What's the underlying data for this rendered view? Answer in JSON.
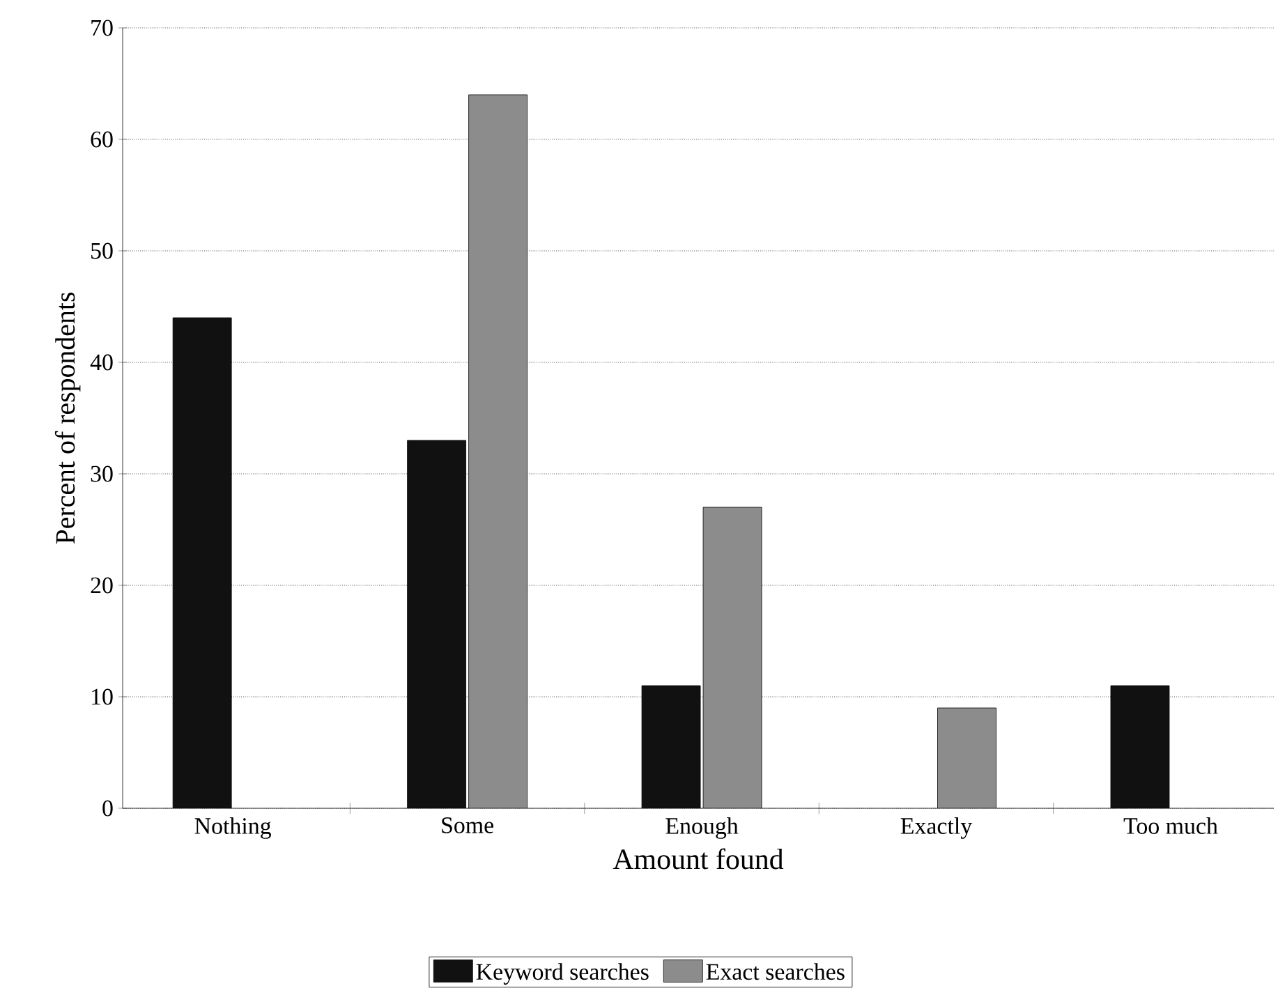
{
  "chart_data": {
    "type": "bar",
    "xlabel": "Amount found",
    "ylabel": "Percent of respondents",
    "categories": [
      "Nothing",
      "Some",
      "Enough",
      "Exactly",
      "Too much"
    ],
    "series": [
      {
        "name": "Keyword searches",
        "color": "#111111",
        "values": [
          44,
          33,
          11,
          null,
          11
        ]
      },
      {
        "name": "Exact searches",
        "color": "#8c8c8c",
        "values": [
          null,
          64,
          27,
          9,
          null
        ]
      }
    ],
    "ylim": [
      0,
      70
    ],
    "yticks": [
      0,
      10,
      20,
      30,
      40,
      50,
      60,
      70
    ],
    "grid": "y",
    "legend": "bottom"
  }
}
